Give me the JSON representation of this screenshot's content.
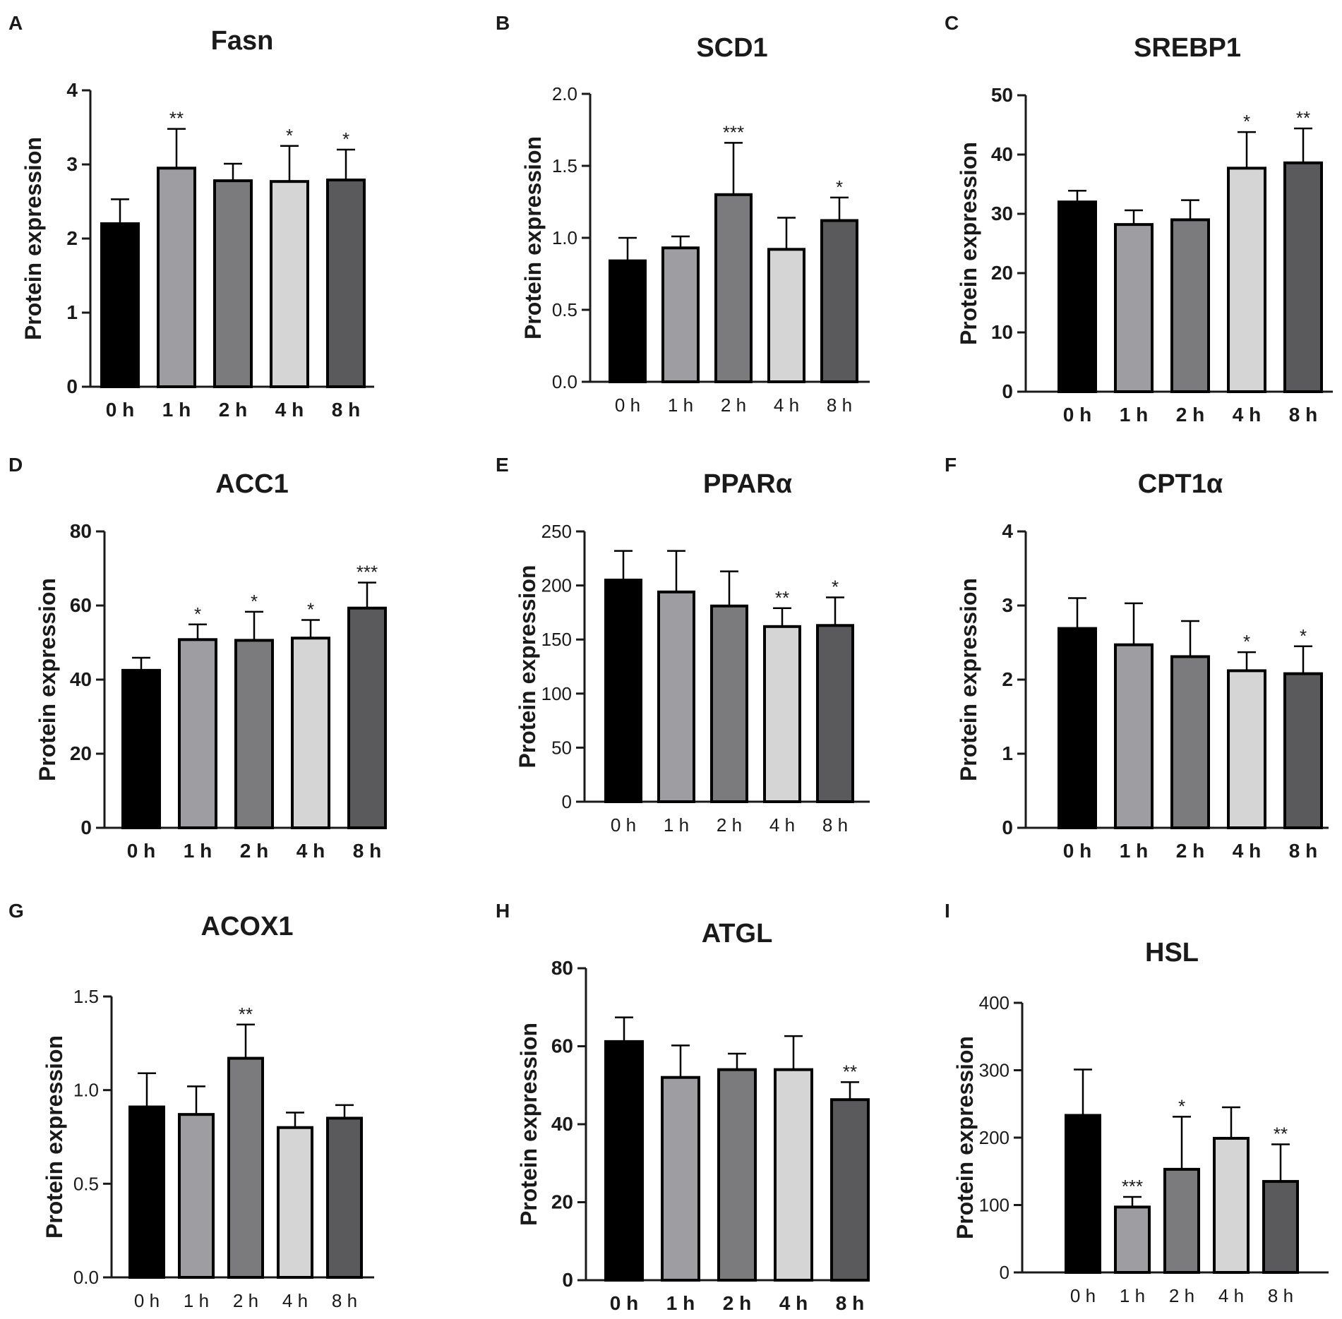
{
  "colors": {
    "0 h": "#000000",
    "1 h": "#9e9ea2",
    "2 h": "#7b7b7d",
    "4 h": "#d5d5d5",
    "8 h": "#5a5a5c",
    "axis": "#1a1a1a",
    "bar_outline": "#000000"
  },
  "chart_data": [
    {
      "type": "bar",
      "panel": "A",
      "title": "Fasn",
      "xlabel": "",
      "ylabel": "Protein expression",
      "ylim": [
        0,
        4
      ],
      "yticks": [
        0,
        1,
        2,
        3,
        4
      ],
      "ytick_labels": [
        "0",
        "1",
        "2",
        "3",
        "4"
      ],
      "categories": [
        "0 h",
        "1 h",
        "2 h",
        "4 h",
        "8 h"
      ],
      "values": [
        2.2,
        2.95,
        2.78,
        2.77,
        2.79
      ],
      "errors": [
        0.33,
        0.53,
        0.23,
        0.48,
        0.41
      ],
      "significance": [
        "",
        "**",
        "",
        "*",
        "*"
      ]
    },
    {
      "type": "bar",
      "panel": "B",
      "title": "SCD1",
      "xlabel": "",
      "ylabel": "Protein expression",
      "ylim": [
        0,
        2
      ],
      "yticks": [
        0,
        0.5,
        1,
        1.5,
        2
      ],
      "ytick_labels": [
        "0.0",
        "0.5",
        "1.0",
        "1.5",
        "2.0"
      ],
      "categories": [
        "0 h",
        "1 h",
        "2 h",
        "4 h",
        "8 h"
      ],
      "values": [
        0.84,
        0.93,
        1.3,
        0.92,
        1.12
      ],
      "errors": [
        0.16,
        0.08,
        0.36,
        0.22,
        0.16
      ],
      "significance": [
        "",
        "",
        "***",
        "",
        "*"
      ]
    },
    {
      "type": "bar",
      "panel": "C",
      "title": "SREBP1",
      "xlabel": "",
      "ylabel": "Protein expression",
      "ylim": [
        0,
        50
      ],
      "yticks": [
        0,
        10,
        20,
        30,
        40,
        50
      ],
      "ytick_labels": [
        "0",
        "10",
        "20",
        "30",
        "40",
        "50"
      ],
      "categories": [
        "0 h",
        "1 h",
        "2 h",
        "4 h",
        "8 h"
      ],
      "values": [
        32,
        28.2,
        29,
        37.7,
        38.6
      ],
      "errors": [
        1.9,
        2.4,
        3.3,
        6.1,
        5.8
      ],
      "significance": [
        "",
        "",
        "",
        "*",
        "**"
      ]
    },
    {
      "type": "bar",
      "panel": "D",
      "title": "ACC1",
      "xlabel": "",
      "ylabel": "Protein expression",
      "ylim": [
        0,
        80
      ],
      "yticks": [
        0,
        20,
        40,
        60,
        80
      ],
      "ytick_labels": [
        "0",
        "20",
        "40",
        "60",
        "80"
      ],
      "categories": [
        "0 h",
        "1 h",
        "2 h",
        "4 h",
        "8 h"
      ],
      "values": [
        42.5,
        50.8,
        50.6,
        51.2,
        59.3
      ],
      "errors": [
        3.4,
        4.1,
        7.7,
        4.9,
        6.9
      ],
      "significance": [
        "",
        "*",
        "*",
        "*",
        "***"
      ]
    },
    {
      "type": "bar",
      "panel": "E",
      "title": "PPARα",
      "xlabel": "",
      "ylabel": "Protein expression",
      "ylim": [
        0,
        250
      ],
      "yticks": [
        0,
        50,
        100,
        150,
        200,
        250
      ],
      "ytick_labels": [
        "0",
        "50",
        "100",
        "150",
        "200",
        "250"
      ],
      "categories": [
        "0 h",
        "1 h",
        "2 h",
        "4 h",
        "8 h"
      ],
      "values": [
        205,
        194,
        181,
        162,
        163
      ],
      "errors": [
        27,
        38,
        32,
        17,
        26
      ],
      "significance": [
        "",
        "",
        "",
        "**",
        "*"
      ]
    },
    {
      "type": "bar",
      "panel": "F",
      "title": "CPT1α",
      "xlabel": "",
      "ylabel": "Protein expression",
      "ylim": [
        0,
        4
      ],
      "yticks": [
        0,
        1,
        2,
        3,
        4
      ],
      "ytick_labels": [
        "0",
        "1",
        "2",
        "3",
        "4"
      ],
      "categories": [
        "0 h",
        "1 h",
        "2 h",
        "4 h",
        "8 h"
      ],
      "values": [
        2.69,
        2.47,
        2.31,
        2.12,
        2.08
      ],
      "errors": [
        0.41,
        0.56,
        0.48,
        0.25,
        0.37
      ],
      "significance": [
        "",
        "",
        "",
        "*",
        "*"
      ]
    },
    {
      "type": "bar",
      "panel": "G",
      "title": "ACOX1",
      "xlabel": "",
      "ylabel": "Protein expression",
      "ylim": [
        0,
        1.5
      ],
      "yticks": [
        0,
        0.5,
        1,
        1.5
      ],
      "ytick_labels": [
        "0.0",
        "0.5",
        "1.0",
        "1.5"
      ],
      "categories": [
        "0 h",
        "1 h",
        "2 h",
        "4 h",
        "8 h"
      ],
      "values": [
        0.91,
        0.87,
        1.17,
        0.8,
        0.85
      ],
      "errors": [
        0.18,
        0.15,
        0.18,
        0.08,
        0.07
      ],
      "significance": [
        "",
        "",
        "**",
        "",
        ""
      ]
    },
    {
      "type": "bar",
      "panel": "H",
      "title": "ATGL",
      "xlabel": "",
      "ylabel": "Protein expression",
      "ylim": [
        0,
        80
      ],
      "yticks": [
        0,
        20,
        40,
        60,
        80
      ],
      "ytick_labels": [
        "0",
        "20",
        "40",
        "60",
        "80"
      ],
      "categories": [
        "0 h",
        "1 h",
        "2 h",
        "4 h",
        "8 h"
      ],
      "values": [
        61.2,
        52,
        54,
        54,
        46.3
      ],
      "errors": [
        6.2,
        8.2,
        4.1,
        8.6,
        4.5
      ],
      "significance": [
        "",
        "",
        "",
        "",
        "**"
      ]
    },
    {
      "type": "bar",
      "panel": "I",
      "title": "HSL",
      "xlabel": "",
      "ylabel": "Protein expression",
      "ylim": [
        0,
        400
      ],
      "yticks": [
        0,
        100,
        200,
        300,
        400
      ],
      "ytick_labels": [
        "0",
        "100",
        "200",
        "300",
        "400"
      ],
      "categories": [
        "0 h",
        "1 h",
        "2 h",
        "4 h",
        "8 h"
      ],
      "values": [
        233,
        97,
        153,
        199,
        135
      ],
      "errors": [
        68,
        15,
        78,
        46,
        55
      ],
      "significance": [
        "",
        "***",
        "*",
        "",
        "**"
      ]
    }
  ]
}
